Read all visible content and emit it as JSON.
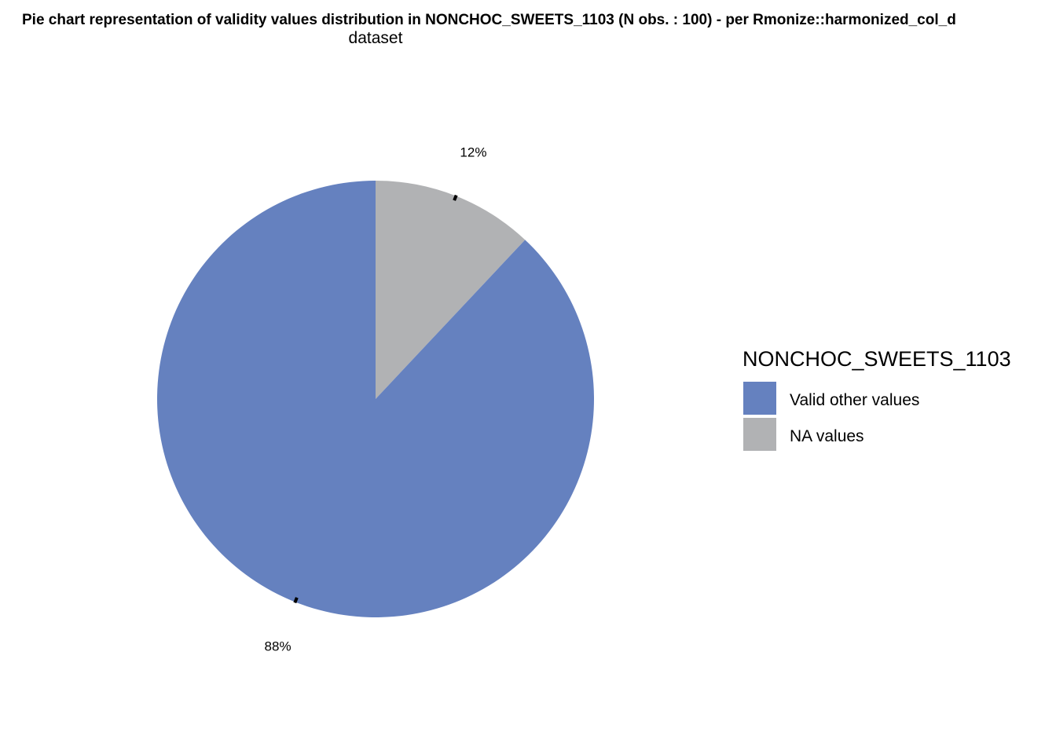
{
  "chart_data": {
    "type": "pie",
    "title": "Pie chart representation of validity values distribution in NONCHOC_SWEETS_1103 (N obs. : 100) - per Rmonize::harmonized_col_d",
    "subtitle": "dataset",
    "legend_title": "NONCHOC_SWEETS_1103",
    "legend_position": "right",
    "start_angle_deg": 0,
    "direction": "clockwise",
    "slices": [
      {
        "label": "NA values",
        "value": 12,
        "percent_label": "12%",
        "color": "#b1b2b4"
      },
      {
        "label": "Valid other values",
        "value": 88,
        "percent_label": "88%",
        "color": "#6581bf"
      }
    ],
    "legend_order": [
      "Valid other values",
      "NA values"
    ]
  }
}
